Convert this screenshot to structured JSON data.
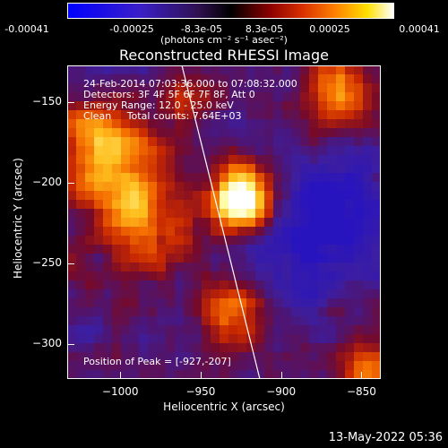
{
  "colorbar": {
    "tick_labels": [
      "-0.00041",
      "-0.00025",
      "-8.3e-05",
      "8.3e-05",
      "0.00025",
      "0.00041"
    ],
    "units": "(photons cm⁻² s⁻¹ asec⁻²)"
  },
  "title": "Reconstructed RHESSI Image",
  "info": {
    "time": "24-Feb-2014 07:03:36.000 to 07:08:32.000",
    "detectors": "Detectors: 3F 4F 5F 6F 7F 8F, Att 0",
    "energy": "Energy Range: 12.0 - 25.0 keV",
    "clean": "Clean     Total counts: 7.64E+03"
  },
  "peak": "Position of Peak = [-927,-207]",
  "axes": {
    "xlabel": "Heliocentric X (arcsec)",
    "ylabel": "Heliocentric Y (arcsec)",
    "x_ticks": [
      -1000,
      -950,
      -900,
      -850
    ],
    "y_ticks": [
      -150,
      -200,
      -250,
      -300
    ],
    "xlim": [
      -1033,
      -838
    ],
    "ylim": [
      -322,
      -127
    ]
  },
  "footer": "13-May-2022 05:36"
}
